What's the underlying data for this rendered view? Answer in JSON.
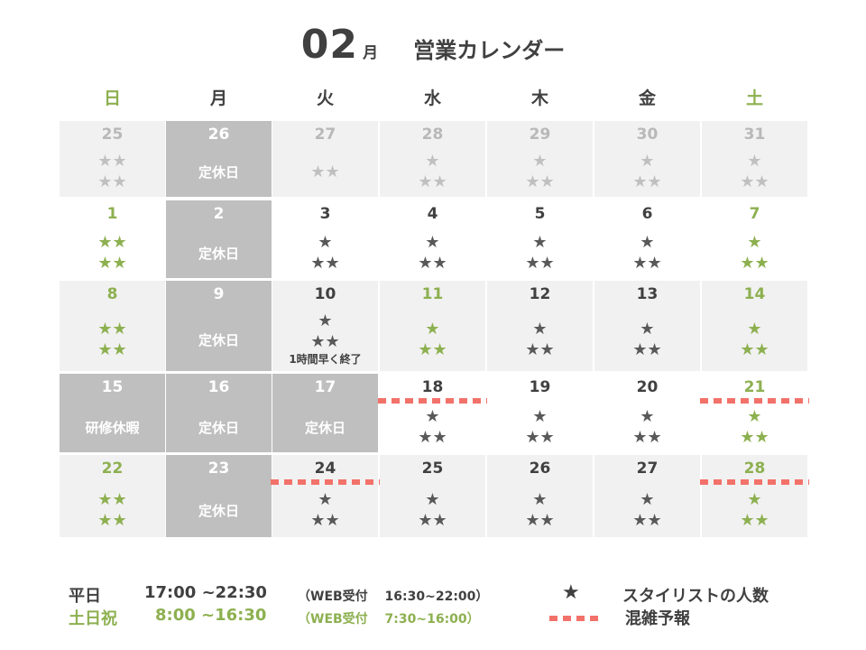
{
  "header": {
    "month": "02",
    "month_unit": "月",
    "title": "営業カレンダー"
  },
  "weekdays": [
    "日",
    "月",
    "火",
    "水",
    "木",
    "金",
    "土"
  ],
  "labels": {
    "closed": "定休日",
    "training": "研修休暇"
  },
  "rows": [
    [
      {
        "day": "25",
        "stars": "★★|★★",
        "kind": "prev"
      },
      {
        "day": "26",
        "kind": "closed",
        "note": "定休日"
      },
      {
        "day": "27",
        "stars": "★★",
        "kind": "prev"
      },
      {
        "day": "28",
        "stars": "★|★★",
        "kind": "prev"
      },
      {
        "day": "29",
        "stars": "★|★★",
        "kind": "prev"
      },
      {
        "day": "30",
        "stars": "★|★★",
        "kind": "prev"
      },
      {
        "day": "31",
        "stars": "★|★★",
        "kind": "prev"
      }
    ],
    [
      {
        "day": "1",
        "stars": "★★|★★",
        "kind": "green-white"
      },
      {
        "day": "2",
        "kind": "closed",
        "note": "定休日"
      },
      {
        "day": "3",
        "stars": "★|★★",
        "kind": "white"
      },
      {
        "day": "4",
        "stars": "★|★★",
        "kind": "white"
      },
      {
        "day": "5",
        "stars": "★|★★",
        "kind": "white"
      },
      {
        "day": "6",
        "stars": "★|★★",
        "kind": "white"
      },
      {
        "day": "7",
        "stars": "★|★★",
        "kind": "green-white"
      }
    ],
    [
      {
        "day": "8",
        "stars": "★★|★★",
        "kind": "green"
      },
      {
        "day": "9",
        "kind": "closed",
        "note": "定休日"
      },
      {
        "day": "10",
        "stars": "★|★★",
        "kind": "gray",
        "sub": "1時間早く終了"
      },
      {
        "day": "11",
        "stars": "★|★★",
        "kind": "green"
      },
      {
        "day": "12",
        "stars": "★|★★",
        "kind": "gray"
      },
      {
        "day": "13",
        "stars": "★|★★",
        "kind": "gray"
      },
      {
        "day": "14",
        "stars": "★|★★",
        "kind": "green"
      }
    ],
    [
      {
        "day": "15",
        "kind": "closed",
        "note": "研修休暇"
      },
      {
        "day": "16",
        "kind": "closed",
        "note": "定休日"
      },
      {
        "day": "17",
        "kind": "closed",
        "note": "定休日"
      },
      {
        "day": "18",
        "stars": "★|★★",
        "kind": "white",
        "busy": true
      },
      {
        "day": "19",
        "stars": "★|★★",
        "kind": "white"
      },
      {
        "day": "20",
        "stars": "★|★★",
        "kind": "white"
      },
      {
        "day": "21",
        "stars": "★|★★",
        "kind": "green-white",
        "busy": true
      }
    ],
    [
      {
        "day": "22",
        "stars": "★★|★★",
        "kind": "green"
      },
      {
        "day": "23",
        "kind": "closed",
        "note": "定休日"
      },
      {
        "day": "24",
        "stars": "★|★★",
        "kind": "gray",
        "busy": true
      },
      {
        "day": "25",
        "stars": "★|★★",
        "kind": "gray"
      },
      {
        "day": "26",
        "stars": "★|★★",
        "kind": "gray"
      },
      {
        "day": "27",
        "stars": "★|★★",
        "kind": "gray"
      },
      {
        "day": "28",
        "stars": "★|★★",
        "kind": "green",
        "busy": true
      }
    ]
  ],
  "footer": {
    "weekday_label": "平日",
    "weekday_hours": "17:00 ~22:30",
    "weekday_web": "（WEB受付　 16:30~22:00）",
    "weekend_label": "土日祝",
    "weekend_hours": "8:00 ~16:30",
    "weekend_web": "（WEB受付　 7:30~16:00）",
    "legend_star_symbol": "★",
    "legend_star_label": "スタイリストの人数",
    "legend_busy_label": "混雑予報"
  },
  "colors": {
    "accent_green": "#8db050",
    "busy_red": "#f2726a",
    "closed_gray": "#bfbfbf",
    "cell_gray": "#f1f1f1"
  }
}
